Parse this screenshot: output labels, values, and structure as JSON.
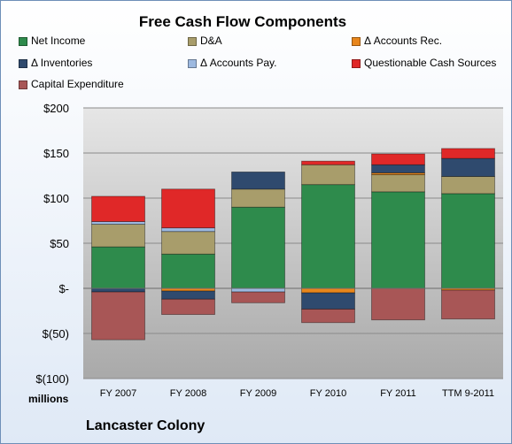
{
  "chart_data": {
    "type": "bar",
    "stacked": true,
    "title": "Free Cash Flow Components",
    "categories": [
      "FY 2007",
      "FY 2008",
      "FY 2009",
      "FY 2010",
      "FY 2011",
      "TTM 9-2011"
    ],
    "ylim": [
      -100,
      200
    ],
    "yticks": [
      -100,
      -50,
      0,
      50,
      100,
      150,
      200
    ],
    "ytick_labels": [
      "$(100)",
      "$(50)",
      "$-",
      "$50",
      "$100",
      "$150",
      "$200"
    ],
    "units_label": "millions",
    "grid": true,
    "legend_position": "top",
    "series": [
      {
        "name": "Net Income",
        "color": "#2e8b4c",
        "values": [
          46,
          38,
          90,
          115,
          107,
          105
        ]
      },
      {
        "name": "D&A",
        "color": "#a89d6b",
        "values": [
          25,
          25,
          20,
          22,
          19,
          19
        ]
      },
      {
        "name": "Δ Accounts Rec.",
        "color": "#e8861c",
        "values": [
          0,
          -3,
          0,
          -5,
          2,
          -2
        ]
      },
      {
        "name": "Δ Inventories",
        "color": "#2f4a6e",
        "values": [
          -4,
          -9,
          19,
          -18,
          9,
          20
        ]
      },
      {
        "name": "Δ Accounts Pay.",
        "color": "#9db9e0",
        "values": [
          3,
          4,
          -4,
          0,
          0,
          0
        ]
      },
      {
        "name": "Questionable Cash Sources",
        "color": "#e02828",
        "values": [
          28,
          43,
          0,
          4,
          12,
          11
        ]
      },
      {
        "name": "Capital Expenditure",
        "color": "#a85656",
        "values": [
          -53,
          -17,
          -12,
          -15,
          -35,
          -32
        ]
      }
    ]
  },
  "footer": {
    "company": "Lancaster Colony"
  }
}
